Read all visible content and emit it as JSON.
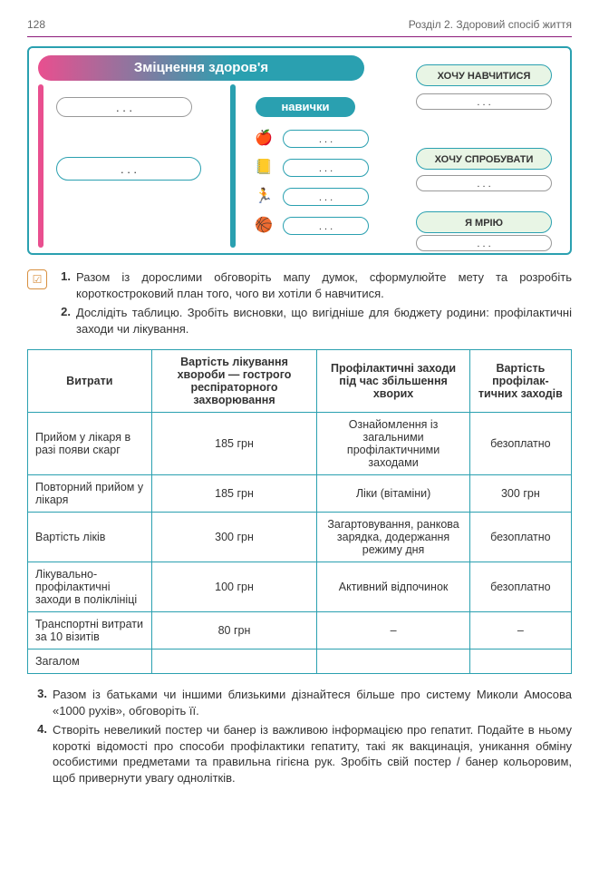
{
  "header": {
    "page_number": "128",
    "section": "Розділ 2. Здоровий спосіб життя"
  },
  "diagram": {
    "title": "Зміцнення здоров'я",
    "skills_label": "навички",
    "placeholder": ". . .",
    "right_badges": [
      "ХОЧУ НАВЧИТИСЯ",
      "ХОЧУ СПРОБУВАТИ",
      "Я МРІЮ"
    ],
    "icons": [
      "🍎",
      "📒",
      "🏃",
      "🏀"
    ]
  },
  "tasks": {
    "t1": "Разом із дорослими обговоріть мапу думок, сформулюйте мету та розробіть короткостроковий план того, чого ви хотіли б навчитися.",
    "t2": "Дослідіть таблицю. Зробіть висновки, що вигідніше для бюджету родини: профілактичні заходи чи лікування.",
    "t3": "Разом із батьками чи іншими близькими дізнайтеся більше про систему Миколи Амосова «1000 рухів», обговоріть її.",
    "t4": "Створіть невеликий постер чи банер із важливою інформацією про гепатит. Подайте в ньому короткі відомості про способи профілактики гепатиту, такі як вакцинація, уникання обміну особистими предметами та правильна гігієна рук. Зробіть свій постер / банер кольоровим, щоб привернути увагу однолітків."
  },
  "table": {
    "headers": [
      "Витрати",
      "Вартість лікування хвороби — гострого респіраторного захворювання",
      "Профілактичні заходи під час збільшення хворих",
      "Вартість профілак­тичних заходів"
    ],
    "rows": [
      [
        "Прийом у лікаря в разі появи скарг",
        "185 грн",
        "Ознайомлення із загальними профілактичними заходами",
        "безоплатно"
      ],
      [
        "Повторний прийом у лікаря",
        "185 грн",
        "Ліки (вітаміни)",
        "300 грн"
      ],
      [
        "Вартість ліків",
        "300 грн",
        "Загартовування, ранкова зарядка, додержання режиму дня",
        "безоплатно"
      ],
      [
        "Лікувально-профілактичні заходи в поліклініці",
        "100 грн",
        "Активний відпочинок",
        "безоплатно"
      ],
      [
        "Транспортні витрати за 10 візитів",
        "80 грн",
        "–",
        "–"
      ],
      [
        "Загалом",
        "",
        "",
        ""
      ]
    ]
  },
  "colors": {
    "teal": "#2aa0b0",
    "pink": "#e94f8f",
    "badge_bg": "#e8f5e5"
  }
}
